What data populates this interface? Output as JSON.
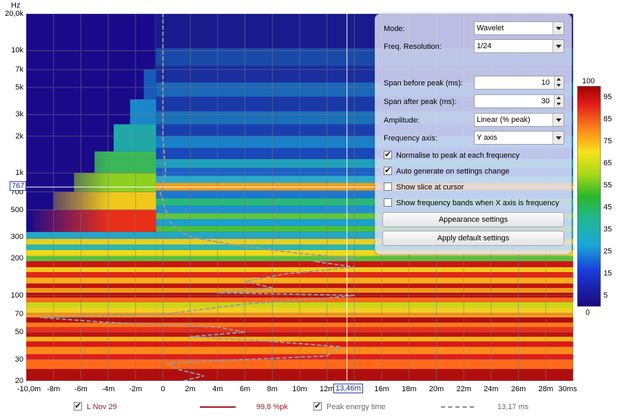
{
  "axis": {
    "y_unit": "Hz",
    "y_ticks": [
      "20,0k",
      "10k",
      "7k",
      "5k",
      "3k",
      "2k",
      "1k",
      "700",
      "500",
      "300",
      "200",
      "100",
      "70",
      "50",
      "30",
      "20"
    ],
    "x_ticks": [
      "-10,0m",
      "-8m",
      "-6m",
      "-4m",
      "-2m",
      "0",
      "2m",
      "4m",
      "6m",
      "8m",
      "10m",
      "12m",
      "16m",
      "18m",
      "20m",
      "22m",
      "24m",
      "26m",
      "28m",
      "30ms"
    ],
    "x_cursor": "13,46m",
    "y_cursor": "767"
  },
  "panel": {
    "mode": {
      "label": "Mode:",
      "value": "Wavelet"
    },
    "freq_resolution": {
      "label": "Freq. Resolution:",
      "value": "1/24"
    },
    "span_before": {
      "label": "Span before peak (ms):",
      "value": "10"
    },
    "span_after": {
      "label": "Span after peak (ms):",
      "value": "30"
    },
    "amplitude": {
      "label": "Amplitude:",
      "value": "Linear (% peak)"
    },
    "frequency_axis": {
      "label": "Frequency axis:",
      "value": "Y axis"
    },
    "checkboxes": [
      {
        "label": "Normalise to peak at each frequency",
        "checked": true
      },
      {
        "label": "Auto generate on settings change",
        "checked": true
      },
      {
        "label": "Show slice at cursor",
        "checked": false
      },
      {
        "label": "Show frequency bands when X axis is frequency",
        "checked": false
      }
    ],
    "appearance_button": "Appearance settings",
    "default_button": "Apply default settings"
  },
  "color_scale": {
    "top": "100",
    "bottom": "0",
    "ticks": [
      "95",
      "85",
      "75",
      "65",
      "55",
      "45",
      "35",
      "25",
      "15",
      "5"
    ]
  },
  "legend": {
    "measurement_name": "L Nov 29",
    "measurement_value": "99,8 %pk",
    "measurement_color": "#a01818",
    "peak_label": "Peak energy time",
    "peak_value": "13,17 ms"
  },
  "chart_data": {
    "type": "heatmap",
    "mode": "Wavelet",
    "x_range_ms": [
      -10,
      30
    ],
    "y_range_hz": [
      20,
      20000
    ],
    "y_scale": "log",
    "z_range": [
      0,
      100
    ],
    "cursor": {
      "time_ms": 13.46,
      "freq_hz": 767
    },
    "peak_energy_time_ms": 13.17
  }
}
